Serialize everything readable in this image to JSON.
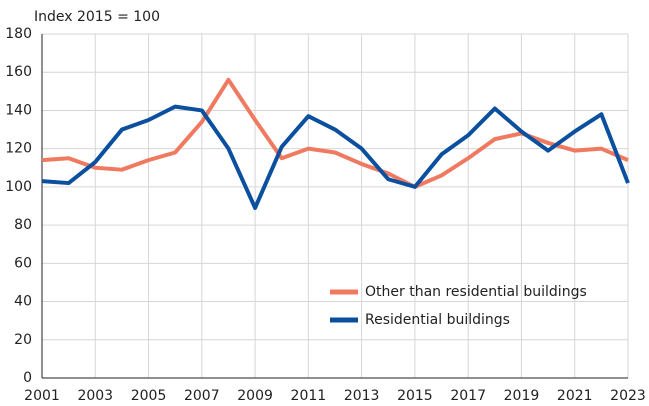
{
  "chart_data": {
    "type": "line",
    "y_label": "Index 2015 = 100",
    "x": [
      2001,
      2002,
      2003,
      2004,
      2005,
      2006,
      2007,
      2008,
      2009,
      2010,
      2011,
      2012,
      2013,
      2014,
      2015,
      2016,
      2017,
      2018,
      2019,
      2020,
      2021,
      2022,
      2023
    ],
    "series": [
      {
        "name": "Other than residential buildings",
        "color": "#f07a60",
        "values": [
          114,
          115,
          110,
          109,
          114,
          118,
          134,
          156,
          135,
          115,
          120,
          118,
          112,
          107,
          100,
          106,
          115,
          125,
          128,
          123,
          119,
          120,
          114
        ]
      },
      {
        "name": "Residential buildings",
        "color": "#0b4f9f",
        "values": [
          103,
          102,
          113,
          130,
          135,
          142,
          140,
          120,
          89,
          121,
          137,
          130,
          120,
          104,
          100,
          117,
          127,
          141,
          129,
          119,
          129,
          138,
          102
        ]
      }
    ],
    "xlim": [
      2001,
      2023
    ],
    "xticks": [
      2001,
      2003,
      2005,
      2007,
      2009,
      2011,
      2013,
      2015,
      2017,
      2019,
      2021,
      2023
    ],
    "ylim": [
      0,
      180
    ],
    "yticks": [
      0,
      20,
      40,
      60,
      80,
      100,
      120,
      140,
      160,
      180
    ],
    "grid": true,
    "legend": "lower right"
  }
}
